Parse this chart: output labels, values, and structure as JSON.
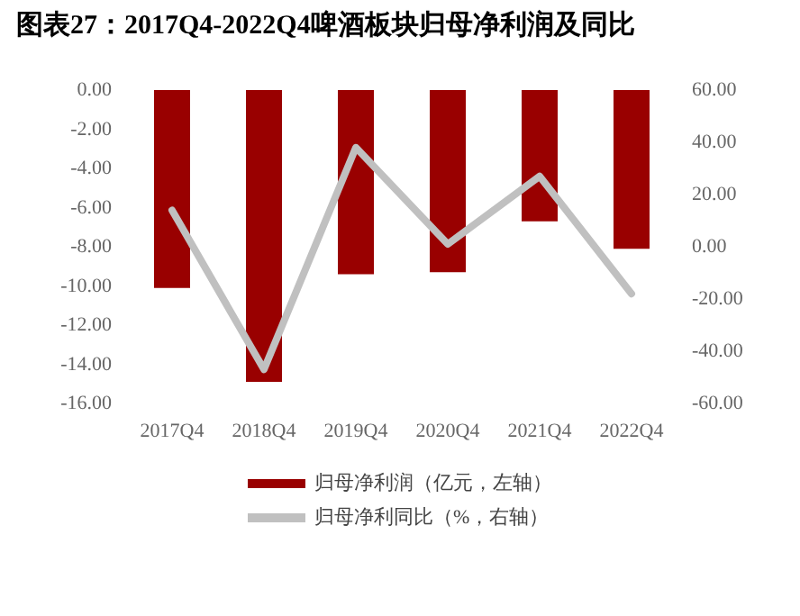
{
  "chart_data": {
    "type": "bar",
    "title": "图表27：2017Q4-2022Q4啤酒板块归母净利润及同比",
    "categories": [
      "2017Q4",
      "2018Q4",
      "2019Q4",
      "2020Q4",
      "2021Q4",
      "2022Q4"
    ],
    "series": [
      {
        "name": "归母净利润（亿元，左轴）",
        "color": "#990000",
        "values": [
          -10.1,
          -14.9,
          -9.4,
          -9.3,
          -6.7,
          -8.1
        ]
      },
      {
        "name": "归母净利同比（%，右轴）",
        "type": "line",
        "axis": "y2",
        "color": "#c0c0c0",
        "values": [
          14,
          -47,
          38,
          1,
          27,
          -18
        ]
      }
    ],
    "ylim": [
      -16,
      0
    ],
    "yticks": [
      {
        "value": 0,
        "label": "0.00"
      },
      {
        "value": -2,
        "label": "-2.00"
      },
      {
        "value": -4,
        "label": "-4.00"
      },
      {
        "value": -6,
        "label": "-6.00"
      },
      {
        "value": -8,
        "label": "-8.00"
      },
      {
        "value": -10,
        "label": "-10.00"
      },
      {
        "value": -12,
        "label": "-12.00"
      },
      {
        "value": -14,
        "label": "-14.00"
      },
      {
        "value": -16,
        "label": "-16.00"
      }
    ],
    "y2lim": [
      -60,
      60
    ],
    "y2ticks": [
      {
        "value": 60,
        "label": "60.00"
      },
      {
        "value": 40,
        "label": "40.00"
      },
      {
        "value": 20,
        "label": "20.00"
      },
      {
        "value": 0,
        "label": "0.00"
      },
      {
        "value": -20,
        "label": "-20.00"
      },
      {
        "value": -40,
        "label": "-40.00"
      },
      {
        "value": -60,
        "label": "-60.00"
      }
    ],
    "grid": false,
    "legend": "bottom",
    "marker": "none",
    "line_style": "solid"
  }
}
